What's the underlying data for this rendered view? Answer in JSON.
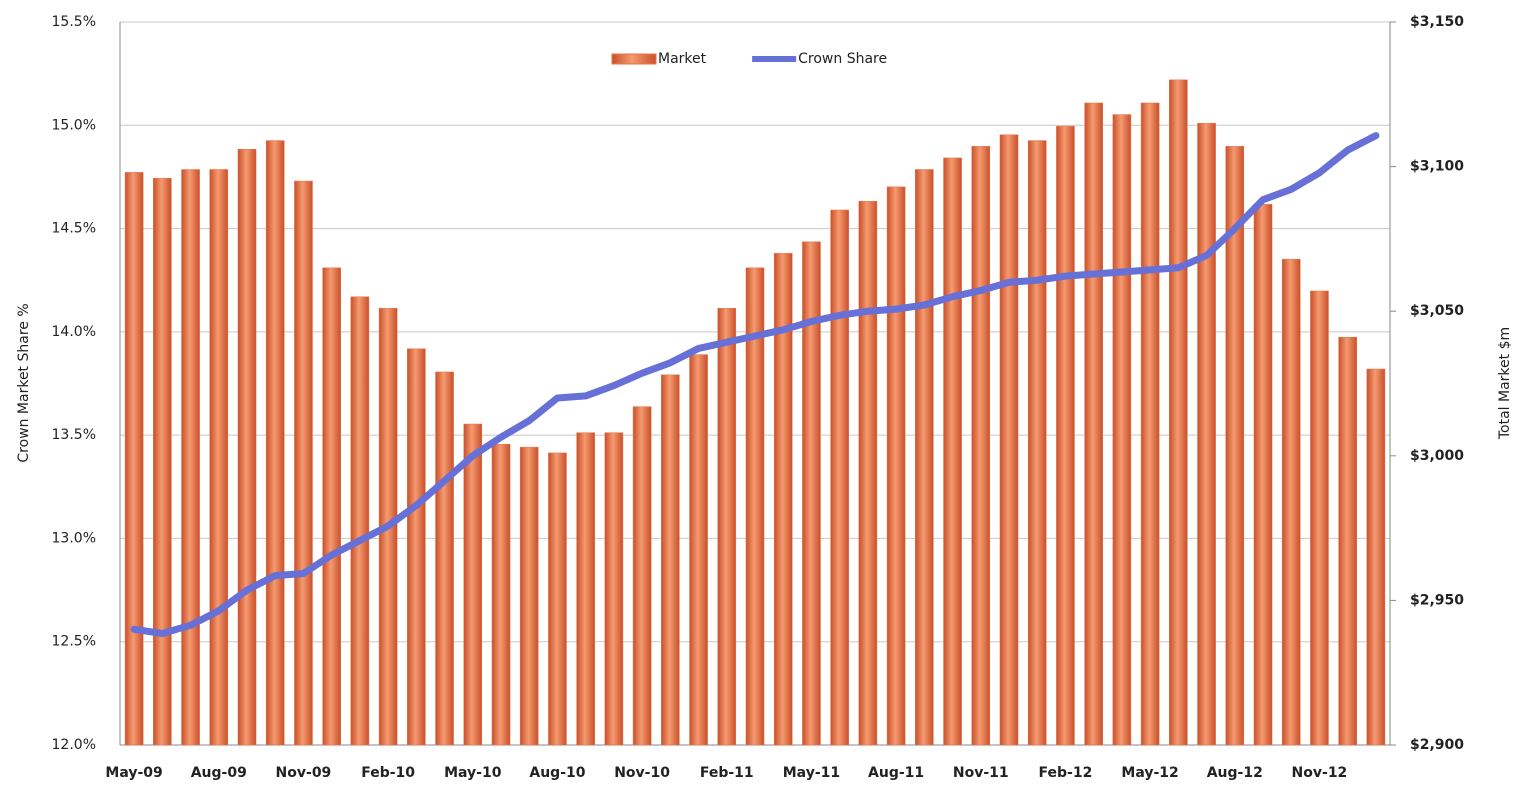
{
  "chart_data": {
    "type": "bar-line",
    "y_label": "Crown Market Share %",
    "y2_label": "Total Market $m",
    "categories": [
      "May-09",
      null,
      null,
      "Aug-09",
      null,
      null,
      "Nov-09",
      null,
      null,
      "Feb-10",
      null,
      null,
      "May-10",
      null,
      null,
      "Aug-10",
      null,
      null,
      "Nov-10",
      null,
      null,
      "Feb-11",
      null,
      null,
      "May-11",
      null,
      null,
      "Aug-11",
      null,
      null,
      "Nov-11",
      null,
      null,
      "Feb-12",
      null,
      null,
      "May-12",
      null,
      null,
      "Aug-12",
      null,
      null,
      "Nov-12",
      null,
      null
    ],
    "series": [
      {
        "name": "Market",
        "type": "bar",
        "axis": "y2",
        "color": "#e8734a",
        "values": [
          3098,
          3096,
          3099,
          3099,
          3106,
          3109,
          3095,
          3065,
          3055,
          3051,
          3037,
          3029,
          3011,
          3004,
          3003,
          3001,
          3008,
          3008,
          3017,
          3028,
          3035,
          3051,
          3065,
          3070,
          3074,
          3085,
          3088,
          3093,
          3099,
          3103,
          3107,
          3111,
          3109,
          3114,
          3122,
          3118,
          3122,
          3130,
          3115,
          3107,
          3087,
          3068,
          3057,
          3041,
          3030
        ]
      },
      {
        "name": "Crown Share",
        "type": "line",
        "color": "#6670d6",
        "values": [
          12.56,
          12.54,
          12.58,
          12.65,
          12.75,
          12.82,
          12.83,
          12.92,
          12.99,
          13.06,
          13.16,
          13.28,
          13.4,
          13.49,
          13.57,
          13.68,
          13.69,
          13.74,
          13.8,
          13.85,
          13.92,
          13.95,
          13.98,
          14.01,
          14.05,
          14.08,
          14.1,
          14.11,
          14.13,
          14.17,
          14.2,
          14.24,
          14.25,
          14.27,
          14.28,
          14.29,
          14.3,
          14.31,
          14.37,
          14.5,
          14.64,
          14.69,
          14.77,
          14.88,
          14.95
        ]
      }
    ],
    "ylim": [
      12.0,
      15.5
    ],
    "yticks": [
      {
        "value": 12.0,
        "label": "12.0%"
      },
      {
        "value": 12.5,
        "label": "12.5%"
      },
      {
        "value": 13.0,
        "label": "13.0%"
      },
      {
        "value": 13.5,
        "label": "13.5%"
      },
      {
        "value": 14.0,
        "label": "14.0%"
      },
      {
        "value": 14.5,
        "label": "14.5%"
      },
      {
        "value": 15.0,
        "label": "15.0%"
      },
      {
        "value": 15.5,
        "label": "15.5%"
      }
    ],
    "y2lim": [
      2900,
      3150
    ],
    "y2ticks": [
      {
        "value": 2900,
        "label": "$2,900"
      },
      {
        "value": 2950,
        "label": "$2,950"
      },
      {
        "value": 3000,
        "label": "$3,000"
      },
      {
        "value": 3050,
        "label": "$3,050"
      },
      {
        "value": 3100,
        "label": "$3,100"
      },
      {
        "value": 3150,
        "label": "$3,150"
      }
    ],
    "grid": true,
    "legend": "top"
  }
}
